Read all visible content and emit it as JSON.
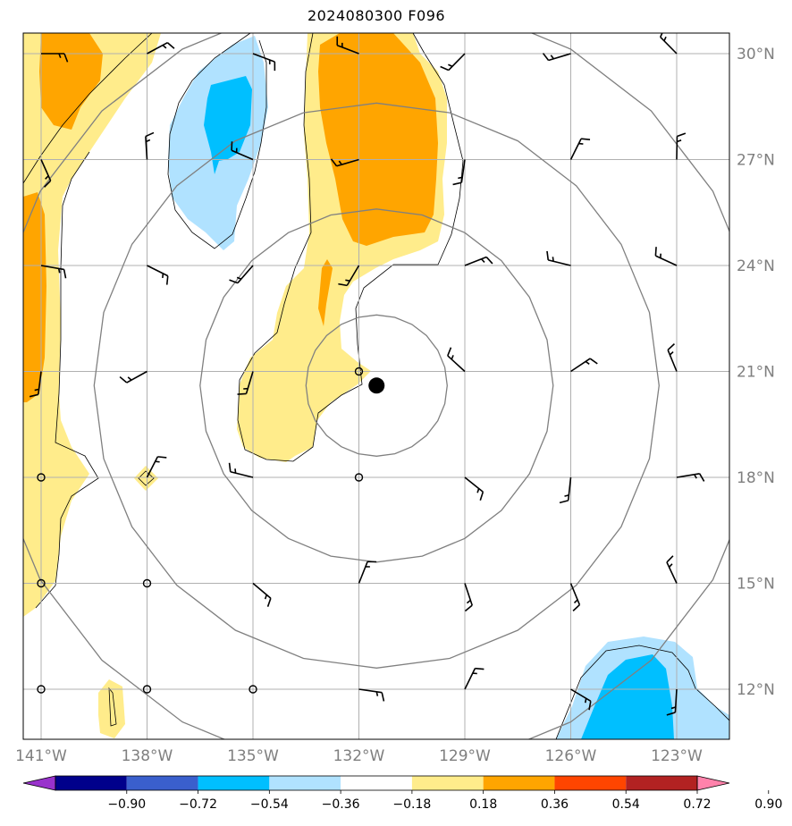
{
  "title": "2024080300 F096",
  "map": {
    "lon_ticks": [
      "141°W",
      "138°W",
      "135°W",
      "132°W",
      "129°W",
      "126°W",
      "123°W"
    ],
    "lat_ticks": [
      "30°N",
      "27°N",
      "24°N",
      "21°N",
      "18°N",
      "15°N",
      "12°N"
    ],
    "storm_center": {
      "lon": -131.5,
      "lat": 20.6
    },
    "range_rings_deg": [
      2,
      5,
      8,
      11
    ]
  },
  "colorbar": {
    "labels": [
      "−0.90",
      "−0.72",
      "−0.54",
      "−0.36",
      "−0.18",
      "0.18",
      "0.36",
      "0.54",
      "0.72",
      "0.90"
    ],
    "colors": [
      "#9932cc",
      "#00008b",
      "#3a5fcd",
      "#00bfff",
      "#b0e2ff",
      "#ffffff",
      "#ffec8b",
      "#ffa500",
      "#ff4500",
      "#b22222",
      "#ff82ab"
    ]
  },
  "fill_colors": {
    "light_yellow": "#ffec8b",
    "orange": "#ffa500",
    "light_blue": "#b0e2ff",
    "deep_sky": "#00bfff"
  }
}
